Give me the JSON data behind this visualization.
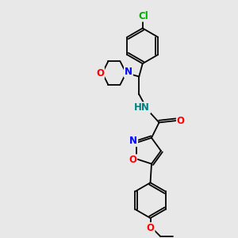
{
  "background_color": "#e8e8e8",
  "bond_color": "#000000",
  "atom_colors": {
    "N": "#0000ff",
    "O": "#ff0000",
    "Cl": "#00aa00",
    "H": "#008080",
    "C": "#000000"
  },
  "font_size_atoms": 8.5,
  "line_width": 1.3,
  "figsize": [
    3.0,
    3.0
  ],
  "dpi": 100
}
